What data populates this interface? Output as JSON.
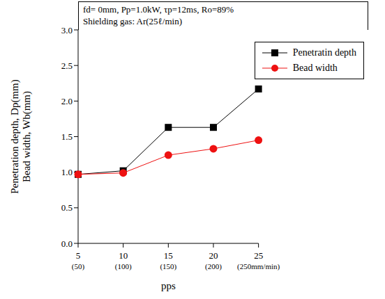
{
  "chart_data": {
    "type": "line",
    "title": "fd= 0mm, Pp=1.0kW, τp=12ms, Ro=89%",
    "subtitle": "Shielding gas: Ar(25ℓ/min)",
    "x_label": "pps",
    "y_label": [
      "Penetration depth, Dp(mm)",
      "Bead width, Wb(mm)"
    ],
    "categories": [
      "5\n(50)",
      "10\n(100)",
      "15\n(150)",
      "20\n(200)",
      "25\n(250mm/min)"
    ],
    "series": [
      {
        "name": "Penetratin depth",
        "color": "#000000",
        "marker": "square",
        "values": [
          0.97,
          1.02,
          1.63,
          1.63,
          2.17
        ]
      },
      {
        "name": "Bead width",
        "color": "#ee1111",
        "marker": "circle",
        "values": [
          0.97,
          0.99,
          1.24,
          1.33,
          1.45
        ]
      }
    ],
    "ylim": [
      0,
      3
    ],
    "yticks": [
      {
        "value": 0,
        "label": "0.0"
      },
      0.5,
      {
        "value": 1,
        "label": "1.0"
      },
      1.5,
      {
        "value": 2,
        "label": "2.0"
      },
      2.5,
      {
        "value": 3,
        "label": "3.0"
      }
    ],
    "grid": false,
    "legend": "upper right"
  }
}
